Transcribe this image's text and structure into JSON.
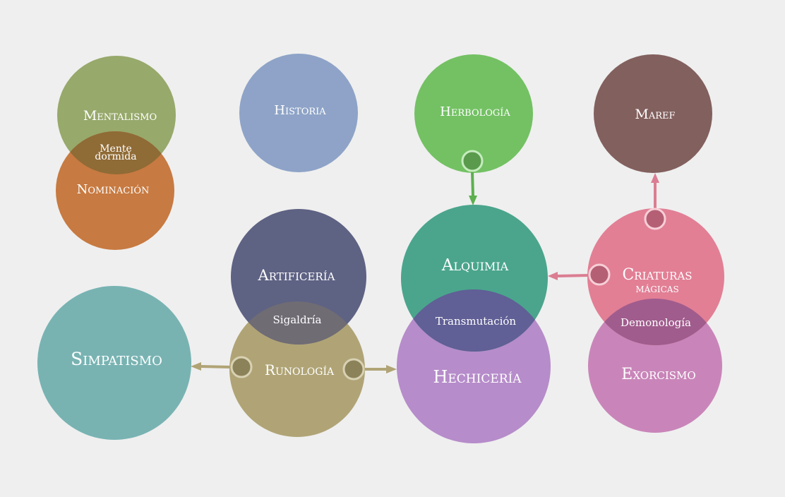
{
  "colors": {
    "background": "#efefef",
    "mentalismo": "#97a96b",
    "nominacion": "#c77a41",
    "historia": "#8ea3c7",
    "herbologia": "#73c163",
    "maref": "#82605e",
    "artificeria": "#5e6283",
    "alquimia": "#4aa58c",
    "criaturas": "#e27f95",
    "simpatismo": "#78b3b2",
    "runologia": "#b0a476",
    "hechiceria": "#b68cca",
    "exorcismo": "#c985b9",
    "overlap_mente": "#8f6b36",
    "overlap_sigaldria": "#6f6c74",
    "overlap_transmutacion": "#605f96",
    "overlap_demonologia": "#a05c8d",
    "arrow_runologia": "#b0a476",
    "arrow_herbologia": "#5cb04e",
    "arrow_criaturas": "#db7d92"
  },
  "nodes": {
    "mentalismo": "Mentalismo",
    "nominacion": "Nominación",
    "historia": "Historia",
    "herbologia": "Herbología",
    "maref": "Maref",
    "artificeria": "Artificería",
    "alquimia": "Alquimia",
    "criaturas_line1": "Criaturas",
    "criaturas_line2": "mágicas",
    "simpatismo": "Simpatismo",
    "runologia": "Runología",
    "hechiceria": "Hechicería",
    "exorcismo": "Exorcismo"
  },
  "overlaps": {
    "mente_line1": "Mente",
    "mente_line2": "dormida",
    "sigaldria": "Sigaldría",
    "transmutacion": "Transmutación",
    "demonologia": "Demonología"
  }
}
